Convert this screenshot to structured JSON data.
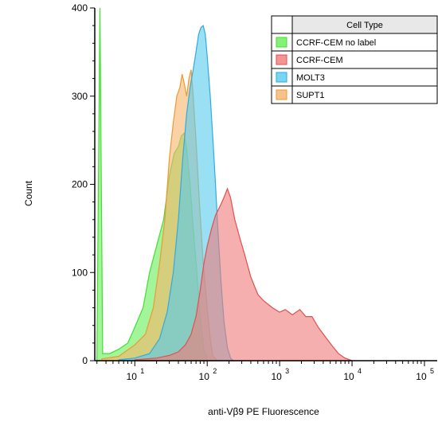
{
  "chart_data": {
    "type": "area",
    "xlabel": "anti-Vβ9 PE Fluorescence",
    "ylabel": "Count",
    "x_scale": "log",
    "xlim": [
      2.8,
      150000
    ],
    "ylim": [
      0,
      400
    ],
    "y_ticks": [
      0,
      100,
      200,
      300,
      400
    ],
    "x_ticks": [
      {
        "base": "10",
        "exp": "1",
        "value": 10
      },
      {
        "base": "10",
        "exp": "2",
        "value": 100
      },
      {
        "base": "10",
        "exp": "3",
        "value": 1000
      },
      {
        "base": "10",
        "exp": "4",
        "value": 10000
      },
      {
        "base": "10",
        "exp": "5",
        "value": 100000
      }
    ],
    "legend": {
      "title": "Cell Type",
      "placement": "top-right"
    },
    "series": [
      {
        "name": "CCRF-CEM no label",
        "fill": "#66ee55",
        "stroke": "#44dd33",
        "points": [
          [
            3.0,
            3
          ],
          [
            3.3,
            420
          ],
          [
            3.6,
            8
          ],
          [
            4.5,
            8
          ],
          [
            6,
            13
          ],
          [
            8,
            20
          ],
          [
            10,
            38
          ],
          [
            13,
            60
          ],
          [
            16,
            100
          ],
          [
            20,
            130
          ],
          [
            25,
            160
          ],
          [
            30,
            210
          ],
          [
            35,
            235
          ],
          [
            40,
            243
          ],
          [
            44,
            255
          ],
          [
            48,
            258
          ],
          [
            52,
            240
          ],
          [
            58,
            200
          ],
          [
            64,
            150
          ],
          [
            72,
            100
          ],
          [
            80,
            50
          ],
          [
            90,
            12
          ],
          [
            100,
            3
          ]
        ]
      },
      {
        "name": "SUPT1",
        "fill": "#f5b46a",
        "stroke": "#ee9933",
        "points": [
          [
            3.5,
            2
          ],
          [
            6,
            5
          ],
          [
            10,
            18
          ],
          [
            14,
            30
          ],
          [
            18,
            60
          ],
          [
            22,
            110
          ],
          [
            26,
            160
          ],
          [
            30,
            230
          ],
          [
            34,
            270
          ],
          [
            38,
            300
          ],
          [
            42,
            310
          ],
          [
            45,
            325
          ],
          [
            48,
            315
          ],
          [
            52,
            300
          ],
          [
            56,
            320
          ],
          [
            60,
            330
          ],
          [
            64,
            300
          ],
          [
            70,
            250
          ],
          [
            78,
            180
          ],
          [
            88,
            110
          ],
          [
            100,
            60
          ],
          [
            110,
            25
          ],
          [
            120,
            5
          ],
          [
            135,
            1
          ]
        ]
      },
      {
        "name": "MOLT3",
        "fill": "#55ccee",
        "stroke": "#33aadd",
        "points": [
          [
            6,
            1
          ],
          [
            10,
            3
          ],
          [
            16,
            8
          ],
          [
            22,
            25
          ],
          [
            28,
            55
          ],
          [
            34,
            100
          ],
          [
            40,
            160
          ],
          [
            46,
            230
          ],
          [
            52,
            280
          ],
          [
            58,
            310
          ],
          [
            64,
            330
          ],
          [
            70,
            350
          ],
          [
            76,
            370
          ],
          [
            82,
            378
          ],
          [
            88,
            380
          ],
          [
            94,
            370
          ],
          [
            100,
            345
          ],
          [
            110,
            300
          ],
          [
            120,
            250
          ],
          [
            130,
            200
          ],
          [
            140,
            150
          ],
          [
            155,
            90
          ],
          [
            170,
            45
          ],
          [
            190,
            15
          ],
          [
            210,
            3
          ],
          [
            230,
            0
          ]
        ]
      },
      {
        "name": "CCRF-CEM",
        "fill": "#f07a7a",
        "stroke": "#e05050",
        "points": [
          [
            10,
            1
          ],
          [
            20,
            3
          ],
          [
            30,
            6
          ],
          [
            40,
            10
          ],
          [
            50,
            18
          ],
          [
            60,
            30
          ],
          [
            70,
            50
          ],
          [
            80,
            80
          ],
          [
            90,
            110
          ],
          [
            100,
            130
          ],
          [
            115,
            150
          ],
          [
            130,
            165
          ],
          [
            150,
            175
          ],
          [
            170,
            185
          ],
          [
            190,
            195
          ],
          [
            210,
            185
          ],
          [
            240,
            160
          ],
          [
            280,
            140
          ],
          [
            330,
            120
          ],
          [
            400,
            95
          ],
          [
            500,
            75
          ],
          [
            600,
            68
          ],
          [
            800,
            60
          ],
          [
            1000,
            55
          ],
          [
            1200,
            58
          ],
          [
            1500,
            52
          ],
          [
            1900,
            58
          ],
          [
            2300,
            50
          ],
          [
            2800,
            50
          ],
          [
            3400,
            38
          ],
          [
            4200,
            28
          ],
          [
            5200,
            18
          ],
          [
            6500,
            8
          ],
          [
            8000,
            3
          ],
          [
            10000,
            0
          ]
        ]
      }
    ]
  }
}
